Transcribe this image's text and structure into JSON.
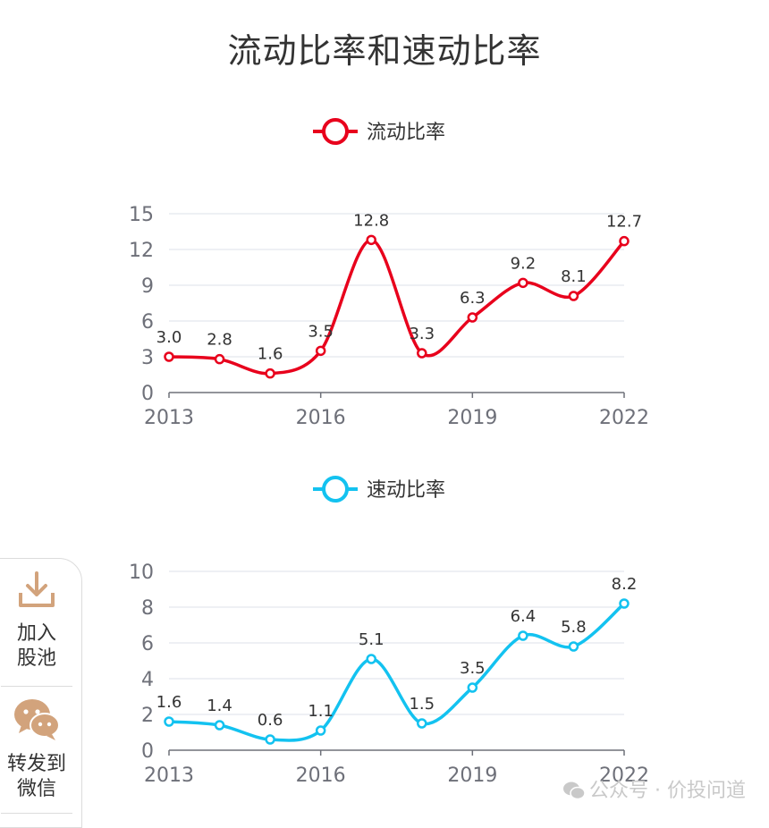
{
  "title": "流动比率和速动比率",
  "chart_data": [
    {
      "type": "line",
      "smooth": true,
      "legend": "流动比率",
      "color": "#e8001c",
      "x": [
        2013,
        2014,
        2015,
        2016,
        2017,
        2018,
        2019,
        2020,
        2021,
        2022
      ],
      "values": [
        3.0,
        2.8,
        1.6,
        3.5,
        12.8,
        3.3,
        6.3,
        9.2,
        8.1,
        12.7
      ],
      "labels": [
        "3.0",
        "2.8",
        "1.6",
        "3.5",
        "12.8",
        "3.3",
        "6.3",
        "9.2",
        "8.1",
        "12.7"
      ],
      "ylim": [
        0,
        15
      ],
      "yticks": [
        "0",
        "3",
        "6",
        "9",
        "12",
        "15"
      ],
      "xticks": [
        "2013",
        "2016",
        "2019",
        "2022"
      ]
    },
    {
      "type": "line",
      "smooth": true,
      "legend": "速动比率",
      "color": "#13c2f0",
      "x": [
        2013,
        2014,
        2015,
        2016,
        2017,
        2018,
        2019,
        2020,
        2021,
        2022
      ],
      "values": [
        1.6,
        1.4,
        0.6,
        1.1,
        5.1,
        1.5,
        3.5,
        6.4,
        5.8,
        8.2
      ],
      "labels": [
        "1.6",
        "1.4",
        "0.6",
        "1.1",
        "5.1",
        "1.5",
        "3.5",
        "6.4",
        "5.8",
        "8.2"
      ],
      "ylim": [
        0,
        10
      ],
      "yticks": [
        "0",
        "2",
        "4",
        "6",
        "8",
        "10"
      ],
      "xticks": [
        "2013",
        "2016",
        "2019",
        "2022"
      ]
    }
  ],
  "sidebar": {
    "add_pool_line1": "加入",
    "add_pool_line2": "股池",
    "share_line1": "转发到",
    "share_line2": "微信"
  },
  "watermark": "公众号 · 价投问道"
}
